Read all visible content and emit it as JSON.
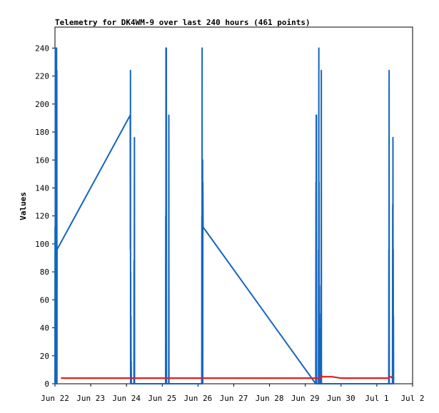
{
  "chart_data": {
    "type": "line",
    "title": "Telemetry for DK4WM-9 over last 240 hours (461 points)",
    "ylabel": "Values",
    "xlabel": "",
    "ylim": [
      0,
      255
    ],
    "yticks": [
      0,
      20,
      40,
      60,
      80,
      100,
      120,
      140,
      160,
      180,
      200,
      220,
      240
    ],
    "xlim": [
      "2025-06-22T00:00",
      "2025-07-02T00:00"
    ],
    "xticks": [
      {
        "t": "2025-06-22T00:00",
        "label": "Jun 22"
      },
      {
        "t": "2025-06-23T00:00",
        "label": "Jun 23"
      },
      {
        "t": "2025-06-24T00:00",
        "label": "Jun 24"
      },
      {
        "t": "2025-06-25T00:00",
        "label": "Jun 25"
      },
      {
        "t": "2025-06-26T00:00",
        "label": "Jun 26"
      },
      {
        "t": "2025-06-27T00:00",
        "label": "Jun 27"
      },
      {
        "t": "2025-06-28T00:00",
        "label": "Jun 28"
      },
      {
        "t": "2025-06-29T00:00",
        "label": "Jun 29"
      },
      {
        "t": "2025-06-30T00:00",
        "label": "Jun 30"
      },
      {
        "t": "2025-07-01T00:00",
        "label": "Jul 1"
      },
      {
        "t": "2025-07-02T00:00",
        "label": "Jul 2"
      }
    ],
    "grid": false,
    "legend": "none",
    "series": [
      {
        "color": "#1565c0",
        "points": [
          [
            "2025-06-22T00:00",
            0
          ],
          [
            "2025-06-22T00:05",
            112
          ],
          [
            "2025-06-22T00:10",
            0
          ],
          [
            "2025-06-22T00:15",
            240
          ],
          [
            "2025-06-22T00:20",
            0
          ],
          [
            "2025-06-22T00:25",
            208
          ],
          [
            "2025-06-22T00:30",
            0
          ],
          [
            "2025-06-22T00:35",
            192
          ],
          [
            "2025-06-22T00:40",
            0
          ],
          [
            "2025-06-22T00:45",
            112
          ],
          [
            "2025-06-22T00:50",
            0
          ],
          [
            "2025-06-22T00:55",
            240
          ],
          [
            "2025-06-22T01:00",
            0
          ],
          [
            "2025-06-22T01:05",
            240
          ],
          [
            "2025-06-22T01:10",
            0
          ],
          [
            "2025-06-22T01:15",
            224
          ],
          [
            "2025-06-22T01:20",
            0
          ],
          [
            "2025-06-22T01:25",
            96
          ],
          [
            "2025-06-24T02:30",
            192
          ],
          [
            "2025-06-24T02:35",
            96
          ],
          [
            "2025-06-24T02:40",
            224
          ],
          [
            "2025-06-24T02:45",
            0
          ],
          [
            "2025-06-24T02:50",
            80
          ],
          [
            "2025-06-24T02:55",
            0
          ],
          [
            "2025-06-24T03:00",
            48
          ],
          [
            "2025-06-24T03:05",
            0
          ],
          [
            "2025-06-24T03:10",
            16
          ],
          [
            "2025-06-24T03:15",
            0
          ],
          [
            "2025-06-24T05:00",
            0
          ],
          [
            "2025-06-24T05:05",
            88
          ],
          [
            "2025-06-24T05:10",
            0
          ],
          [
            "2025-06-24T05:20",
            176
          ],
          [
            "2025-06-24T05:25",
            0
          ],
          [
            "2025-06-25T02:15",
            0
          ],
          [
            "2025-06-25T02:20",
            120
          ],
          [
            "2025-06-25T02:25",
            0
          ],
          [
            "2025-06-25T02:30",
            240
          ],
          [
            "2025-06-25T02:35",
            0
          ],
          [
            "2025-06-25T02:45",
            240
          ],
          [
            "2025-06-25T02:50",
            0
          ],
          [
            "2025-06-25T04:20",
            0
          ],
          [
            "2025-06-25T04:25",
            192
          ],
          [
            "2025-06-25T04:30",
            0
          ],
          [
            "2025-06-26T02:30",
            0
          ],
          [
            "2025-06-26T02:35",
            120
          ],
          [
            "2025-06-26T02:40",
            0
          ],
          [
            "2025-06-26T02:45",
            240
          ],
          [
            "2025-06-26T02:50",
            0
          ],
          [
            "2025-06-26T02:55",
            144
          ],
          [
            "2025-06-26T03:00",
            0
          ],
          [
            "2025-06-26T03:05",
            160
          ],
          [
            "2025-06-26T03:10",
            0
          ],
          [
            "2025-06-26T03:15",
            144
          ],
          [
            "2025-06-26T03:25",
            112
          ],
          [
            "2025-06-29T07:00",
            0
          ],
          [
            "2025-06-29T07:10",
            144
          ],
          [
            "2025-06-29T07:15",
            0
          ],
          [
            "2025-06-29T07:20",
            192
          ],
          [
            "2025-06-29T07:25",
            0
          ],
          [
            "2025-06-29T07:30",
            192
          ],
          [
            "2025-06-29T07:35",
            0
          ],
          [
            "2025-06-29T08:50",
            0
          ],
          [
            "2025-06-29T08:55",
            96
          ],
          [
            "2025-06-29T09:00",
            0
          ],
          [
            "2025-06-29T09:05",
            240
          ],
          [
            "2025-06-29T09:10",
            0
          ],
          [
            "2025-06-29T09:15",
            144
          ],
          [
            "2025-06-29T09:20",
            0
          ],
          [
            "2025-06-29T09:25",
            32
          ],
          [
            "2025-06-29T09:30",
            70
          ],
          [
            "2025-06-29T09:35",
            0
          ],
          [
            "2025-06-29T09:40",
            50
          ],
          [
            "2025-06-29T09:45",
            0
          ],
          [
            "2025-06-29T09:50",
            40
          ],
          [
            "2025-06-29T09:55",
            0
          ],
          [
            "2025-06-29T10:40",
            0
          ],
          [
            "2025-06-29T10:45",
            224
          ],
          [
            "2025-06-29T10:50",
            0
          ],
          [
            "2025-07-01T08:00",
            0
          ],
          [
            "2025-07-01T08:05",
            96
          ],
          [
            "2025-07-01T08:10",
            0
          ],
          [
            "2025-07-01T08:15",
            224
          ],
          [
            "2025-07-01T08:20",
            0
          ],
          [
            "2025-07-01T10:30",
            0
          ],
          [
            "2025-07-01T10:35",
            64
          ],
          [
            "2025-07-01T10:40",
            128
          ],
          [
            "2025-07-01T10:45",
            0
          ],
          [
            "2025-07-01T10:50",
            176
          ],
          [
            "2025-07-01T10:55",
            0
          ],
          [
            "2025-07-01T11:00",
            96
          ],
          [
            "2025-07-01T11:05",
            0
          ],
          [
            "2025-07-01T11:10",
            48
          ],
          [
            "2025-07-01T11:15",
            0
          ]
        ]
      },
      {
        "color": "#e02020",
        "points": [
          [
            "2025-06-22T04:00",
            4
          ],
          [
            "2025-06-29T09:50",
            4
          ],
          [
            "2025-06-29T10:40",
            4
          ],
          [
            "2025-06-29T10:45",
            6
          ],
          [
            "2025-06-29T11:30",
            5
          ],
          [
            "2025-06-29T18:00",
            5
          ],
          [
            "2025-06-30T00:00",
            4
          ],
          [
            "2025-07-01T00:00",
            4
          ],
          [
            "2025-07-01T08:00",
            4
          ],
          [
            "2025-07-01T08:15",
            5
          ],
          [
            "2025-07-01T09:30",
            5
          ],
          [
            "2025-07-01T10:30",
            4
          ]
        ]
      }
    ]
  }
}
